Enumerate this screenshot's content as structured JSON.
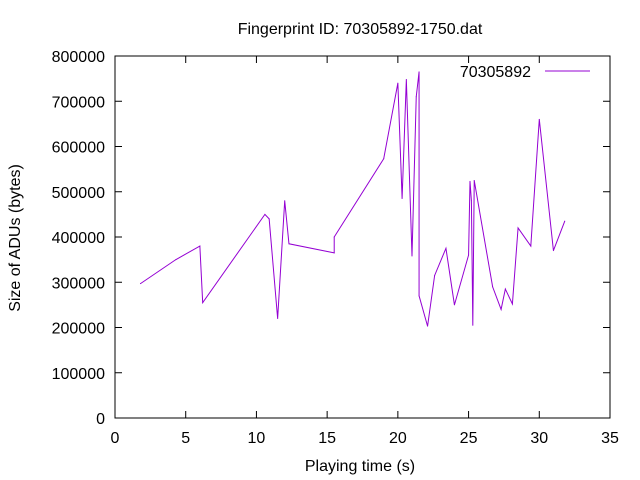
{
  "chart_data": {
    "type": "line",
    "title": "Fingerprint ID: 70305892-1750.dat",
    "xlabel": "Playing time (s)",
    "ylabel": "Size of ADUs (bytes)",
    "xlim": [
      0,
      35
    ],
    "ylim": [
      0,
      800000
    ],
    "xticks": [
      0,
      5,
      10,
      15,
      20,
      25,
      30,
      35
    ],
    "yticks": [
      0,
      100000,
      200000,
      300000,
      400000,
      500000,
      600000,
      700000,
      800000
    ],
    "xtick_labels": [
      "0",
      "5",
      "10",
      "15",
      "20",
      "25",
      "30",
      "35"
    ],
    "ytick_labels": [
      "0",
      "100000",
      "200000",
      "300000",
      "400000",
      "500000",
      "600000",
      "700000",
      "800000"
    ],
    "grid": false,
    "legend_position": "top-right",
    "series": [
      {
        "name": "70305892",
        "color": "#9400d3",
        "x": [
          1.8,
          4.3,
          6.0,
          6.2,
          10.6,
          10.9,
          11.5,
          12.0,
          12.3,
          15.5,
          15.5,
          19.0,
          20.0,
          20.3,
          20.6,
          21.0,
          21.3,
          21.5,
          21.5,
          22.1,
          22.6,
          23.4,
          24.0,
          25.0,
          25.1,
          25.2,
          25.3,
          25.4,
          26.7,
          27.3,
          27.6,
          28.1,
          28.5,
          29.4,
          30.0,
          31.0,
          31.8
        ],
        "y": [
          297000,
          350000,
          380000,
          255000,
          450000,
          440000,
          220000,
          480000,
          385000,
          365000,
          400000,
          573000,
          740000,
          485000,
          748000,
          358000,
          710000,
          765000,
          270000,
          203000,
          315000,
          375000,
          250000,
          360000,
          523000,
          480000,
          205000,
          525000,
          290000,
          240000,
          285000,
          252000,
          420000,
          380000,
          660000,
          370000,
          435000
        ]
      }
    ]
  }
}
